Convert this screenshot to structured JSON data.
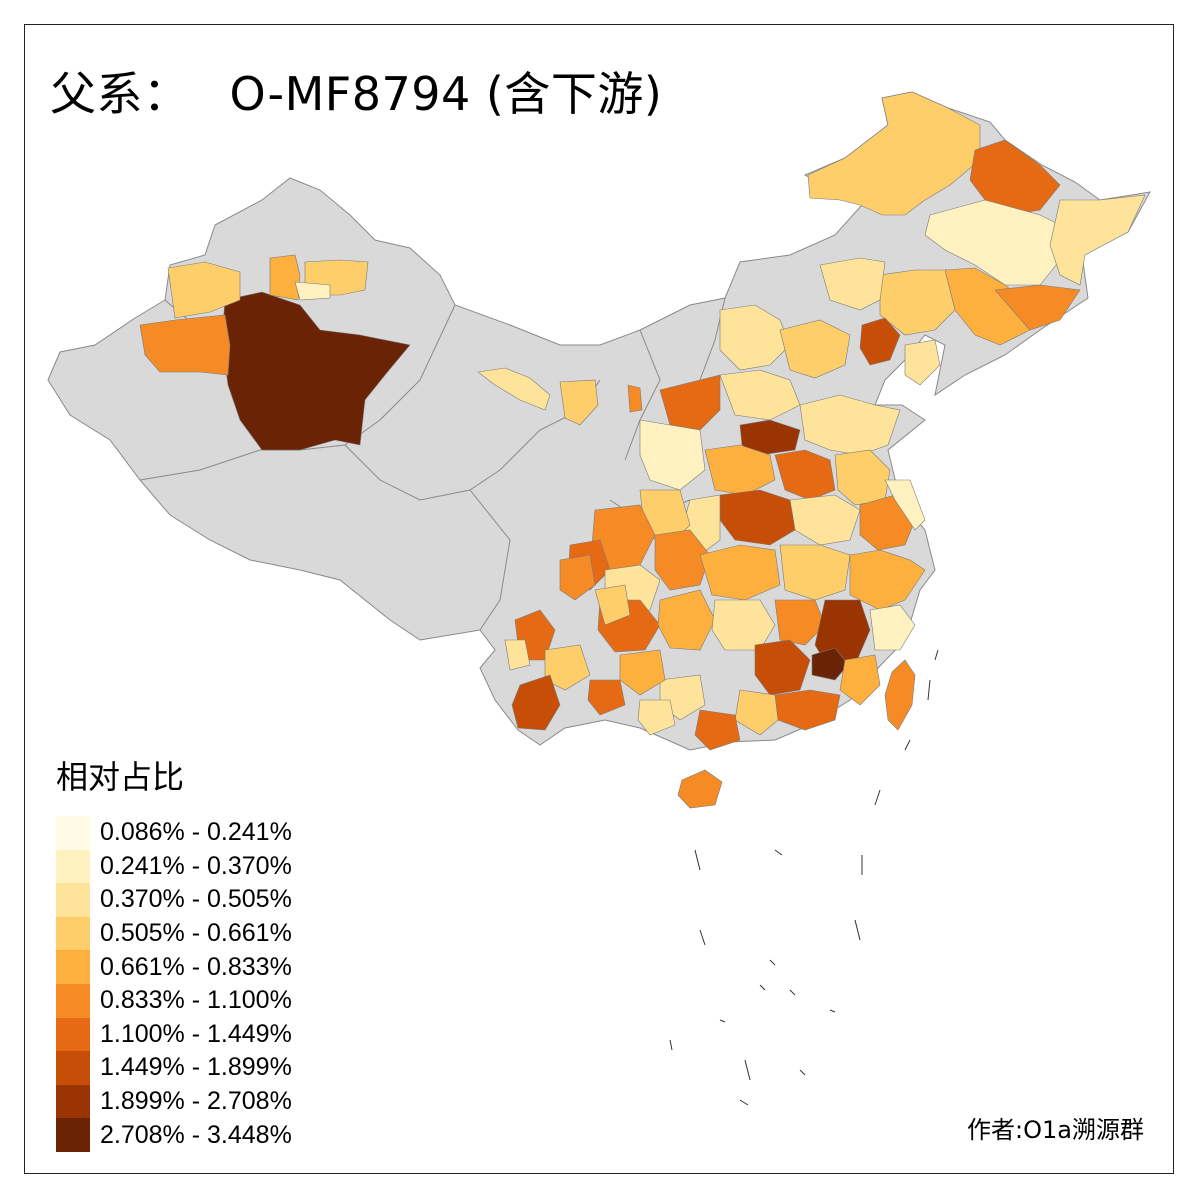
{
  "title": {
    "label": "父系：",
    "code": "O-MF8794 (含下游)"
  },
  "legend": {
    "title": "相对占比",
    "items": [
      {
        "range": "0.086% - 0.241%",
        "color": "#fffbe6"
      },
      {
        "range": "0.241% - 0.370%",
        "color": "#fff2c0"
      },
      {
        "range": "0.370% - 0.505%",
        "color": "#fee49a"
      },
      {
        "range": "0.505% - 0.661%",
        "color": "#fece6a"
      },
      {
        "range": "0.661% - 0.833%",
        "color": "#feb03f"
      },
      {
        "range": "0.833% - 1.100%",
        "color": "#f68b25"
      },
      {
        "range": "1.100% - 1.449%",
        "color": "#e56a13"
      },
      {
        "range": "1.449% - 1.899%",
        "color": "#c74e07"
      },
      {
        "range": "1.899% - 2.708%",
        "color": "#9a3403"
      },
      {
        "range": "2.708% - 3.448%",
        "color": "#6a2405"
      }
    ]
  },
  "no_data_color": "#d9d9d9",
  "author": "作者:O1a溯源群"
}
